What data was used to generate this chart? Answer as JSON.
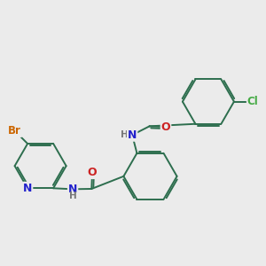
{
  "background_color": "#ebebeb",
  "bond_color": "#2d6e4e",
  "atom_colors": {
    "Br": "#cc6600",
    "N": "#2222cc",
    "O": "#cc2222",
    "Cl": "#44aa44",
    "H": "#777777",
    "C": "#2d6e4e"
  },
  "bond_lw": 1.4,
  "figsize": [
    3.0,
    3.0
  ],
  "dpi": 100
}
